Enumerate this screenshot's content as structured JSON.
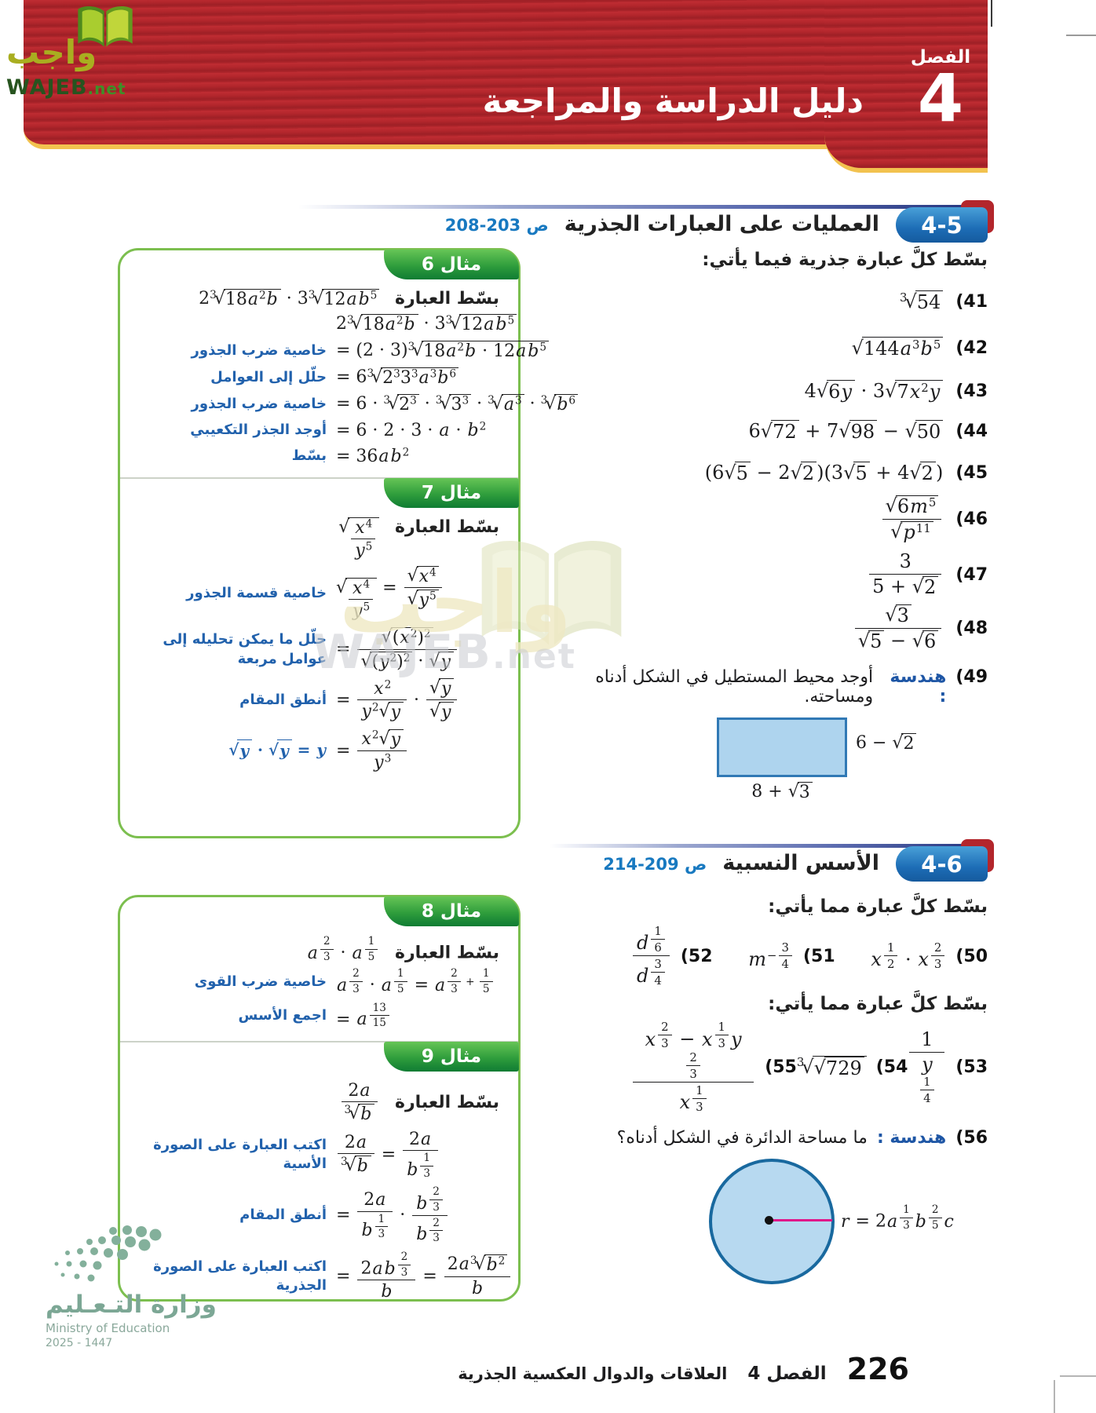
{
  "logo": {
    "ar": "واجب",
    "en": "WAJEB",
    "net": ".net"
  },
  "banner": {
    "chapter_label": "الفصل",
    "chapter_number": "4",
    "title": "دليل الدراسة والمراجعة"
  },
  "sec45": {
    "badge": "4-5",
    "title": "العمليات على العبارات الجذرية",
    "pages": "ص 203-208",
    "intro": "بسّط كلَّ عبارة جذرية فيما يأتي:"
  },
  "sec46": {
    "badge": "4-6",
    "title": "الأسس النسبية",
    "pages": "ص 209-214",
    "intro1": "بسّط كلَّ عبارة مما يأتي:",
    "intro2": "بسّط كلَّ عبارة مما يأتي:"
  },
  "ex6": {
    "tab": "مثال 6",
    "prompt": "بسّط العبارة",
    "expr": "2\\root3{18a^2b} · 3\\root3{12ab^5}",
    "lines": [
      {
        "math": "2\\root3{18a^2b} · 3\\root3{12ab^5}",
        "note": ""
      },
      {
        "math": "= (2 · 3)\\root3{18a^2b · 12ab^5}",
        "note": "خاصية ضرب الجذور"
      },
      {
        "math": "= 6\\root3{2^33^3a^3b^6}",
        "note": "حلّل إلى العوامل"
      },
      {
        "math": "= 6 · \\root3{2^3} · \\root3{3^3} · \\root3{a^3} · \\root3{b^6}",
        "note": "خاصية ضرب الجذور"
      },
      {
        "math": "= 6 · 2 · 3 · a · b^2",
        "note": "أوجد الجذر التكعيبي"
      },
      {
        "math": "= 36ab^2",
        "note": "بسّط"
      }
    ]
  },
  "ex7": {
    "tab": "مثال 7",
    "prompt": "بسّط العبارة",
    "expr": "\\sqrt{\\frac{x^4}{y^5}}",
    "lines": [
      {
        "math": "\\sqrt{\\frac{x^4}{y^5}} = \\frac{\\sqrt{x^4}}{\\sqrt{y^5}}",
        "note": "خاصية قسمة الجذور"
      },
      {
        "math": "= \\frac{\\sqrt{(x^2)^2}}{\\sqrt{(y^2)^2} · \\sqrt{y}}",
        "note": "حلّل ما يمكن تحليله إلى عوامل مربعة"
      },
      {
        "math": "= \\frac{x^2}{y^2\\sqrt{y}} · \\frac{\\sqrt{y}}{\\sqrt{y}}",
        "note": "أنطق المقام"
      },
      {
        "math": "= \\frac{x^2\\sqrt{y}}{y^3}",
        "note": "\\sqrt{y} · \\sqrt{y} = y"
      }
    ]
  },
  "ex8": {
    "tab": "مثال 8",
    "prompt": "بسّط العبارة",
    "expr": "a^{\\frac{2}{3}} · a^{\\frac{1}{5}}",
    "lines": [
      {
        "math": "a^{\\frac{2}{3}} · a^{\\frac{1}{5}} = a^{\\frac{2}{3} + \\frac{1}{5}}",
        "note": "خاصية ضرب القوى"
      },
      {
        "math": "= a^{\\frac{13}{15}}",
        "note": "اجمع الأسس"
      }
    ]
  },
  "ex9": {
    "tab": "مثال 9",
    "prompt": "بسّط العبارة",
    "expr": "\\frac{2a}{\\root3{b}}",
    "lines": [
      {
        "math": "\\frac{2a}{\\root3{b}} = \\frac{2a}{b^{\\frac{1}{3}}}",
        "note": "اكتب العبارة على الصورة الأسية"
      },
      {
        "math": "= \\frac{2a}{b^{\\frac{1}{3}}} · \\frac{b^{\\frac{2}{3}}}{b^{\\frac{2}{3}}}",
        "note": "أنطق المقام"
      },
      {
        "math": "= \\frac{2ab^{\\frac{2}{3}}}{b} = \\frac{2a\\root3{b^2}}{b}",
        "note": "اكتب العبارة على الصورة الجذرية"
      }
    ]
  },
  "items": {
    "i41": {
      "num": "(41",
      "math": "\\root3{54}"
    },
    "i42": {
      "num": "(42",
      "math": "\\sqrt{144a^3b^5}"
    },
    "i43": {
      "num": "(43",
      "math": "4\\sqrt{6y} · 3\\sqrt{7x^2y}"
    },
    "i44": {
      "num": "(44",
      "math": "6\\sqrt{72} + 7\\sqrt{98} − \\sqrt{50}"
    },
    "i45": {
      "num": "(45",
      "math": "(6\\sqrt{5} − 2\\sqrt{2})(3\\sqrt{5} + 4\\sqrt{2})"
    },
    "i46": {
      "num": "(46",
      "math": "\\frac{\\sqrt{6m^5}}{\\sqrt{p^{11}}}"
    },
    "i47": {
      "num": "(47",
      "math": "\\frac{3}{5 + \\sqrt{2}}"
    },
    "i48": {
      "num": "(48",
      "math": "\\frac{\\sqrt{3}}{\\sqrt{5} − \\sqrt{6}}"
    },
    "i49": {
      "num": "(49",
      "geo": "هندسة :",
      "text": "أوجد محيط المستطيل في الشكل أدناه ومساحته."
    },
    "i50": {
      "num": "(50",
      "math": "x^{\\frac{1}{2}} · x^{\\frac{2}{3}}"
    },
    "i51": {
      "num": "(51",
      "math": "m^{−\\frac{3}{4}}"
    },
    "i52": {
      "num": "(52",
      "math": "\\frac{d^{\\frac{1}{6}}}{d^{\\frac{3}{4}}}"
    },
    "i53": {
      "num": "(53",
      "math": "\\frac{1}{y^{\\frac{1}{4}}}"
    },
    "i54": {
      "num": "(54",
      "math": "\\root3{\\sqrt{729}}"
    },
    "i55": {
      "num": "(55",
      "math": "\\frac{x^{\\frac{2}{3}} − x^{\\frac{1}{3}}y^{\\frac{2}{3}}}{x^{\\frac{1}{3}}}"
    },
    "i56": {
      "num": "(56",
      "geo": "هندسة :",
      "text": "ما مساحة الدائرة في الشكل أدناه؟"
    }
  },
  "figures": {
    "rect": {
      "height_label": "6 − \\sqrt{2}",
      "width_label": "8 + \\sqrt{3}"
    },
    "circle": {
      "radius_label": "r = 2a^{\\frac{1}{3}}b^{\\frac{2}{5}}c"
    }
  },
  "footer": {
    "page": "226",
    "chapter": "الفصل 4",
    "title": "العلاقات والدوال العكسية الجذرية"
  },
  "ministry": {
    "ar": "وزارة التـعـليم",
    "en": "Ministry of Education",
    "years": "2025 - 1447"
  },
  "colors": {
    "banner_red": "#b2262c",
    "gold": "#f2c24f",
    "example_green": "#2f9d3c",
    "box_border_green": "#7cbf4f",
    "badge_blue": "#1d6db6",
    "note_blue": "#2161ac",
    "page_ref_blue": "#1879c0",
    "rect_fill": "#aed4ee",
    "circle_fill": "#b7d9f0",
    "radius_pink": "#e0168a"
  }
}
